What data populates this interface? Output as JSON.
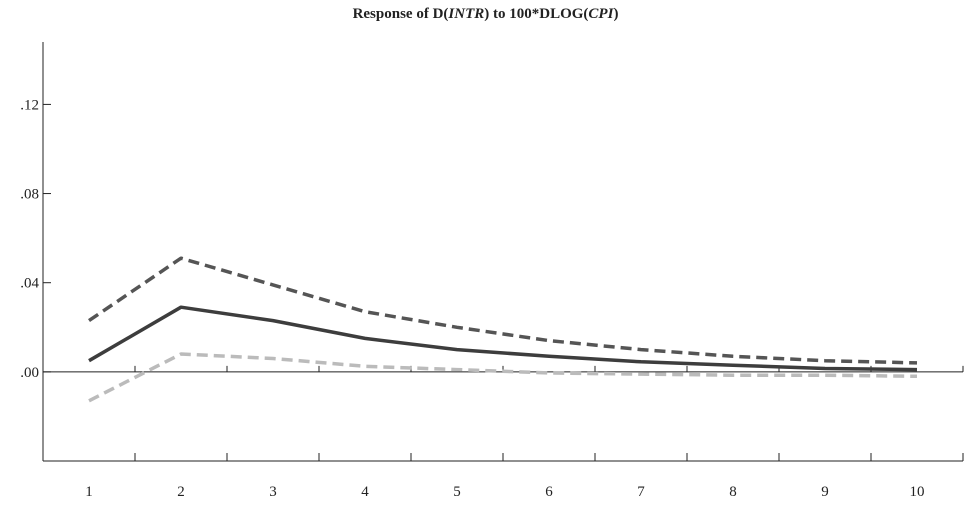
{
  "chart_data": {
    "type": "line",
    "title_parts": [
      {
        "text": "Response of D(",
        "italic": false
      },
      {
        "text": "INTR",
        "italic": true
      },
      {
        "text": ") to 100*DLOG(",
        "italic": false
      },
      {
        "text": "CPI",
        "italic": true
      },
      {
        "text": ")",
        "italic": false
      }
    ],
    "x": [
      1,
      2,
      3,
      4,
      5,
      6,
      7,
      8,
      9,
      10
    ],
    "xlim": [
      0.5,
      10.5
    ],
    "ylim": [
      -0.04,
      0.148
    ],
    "y_ticks": [
      {
        "value": 0.12,
        "label": ".12"
      },
      {
        "value": 0.08,
        "label": ".08"
      },
      {
        "value": 0.04,
        "label": ".04"
      },
      {
        "value": 0.0,
        "label": ".00"
      }
    ],
    "x_tick_labels": [
      "1",
      "2",
      "3",
      "4",
      "5",
      "6",
      "7",
      "8",
      "9",
      "10"
    ],
    "grid": false,
    "zero_line": true,
    "series": [
      {
        "role": "upper",
        "style": "dashed",
        "color": "#555555",
        "values": [
          0.023,
          0.051,
          0.039,
          0.027,
          0.02,
          0.014,
          0.01,
          0.007,
          0.005,
          0.004
        ]
      },
      {
        "role": "response",
        "style": "solid",
        "color": "#3d3d3d",
        "values": [
          0.005,
          0.029,
          0.023,
          0.015,
          0.01,
          0.007,
          0.0045,
          0.003,
          0.0015,
          0.001
        ]
      },
      {
        "role": "lower",
        "style": "dashed",
        "color": "#bbbbbb",
        "values": [
          -0.013,
          0.008,
          0.006,
          0.0025,
          0.001,
          -0.0005,
          -0.001,
          -0.0015,
          -0.0015,
          -0.002
        ]
      }
    ]
  }
}
